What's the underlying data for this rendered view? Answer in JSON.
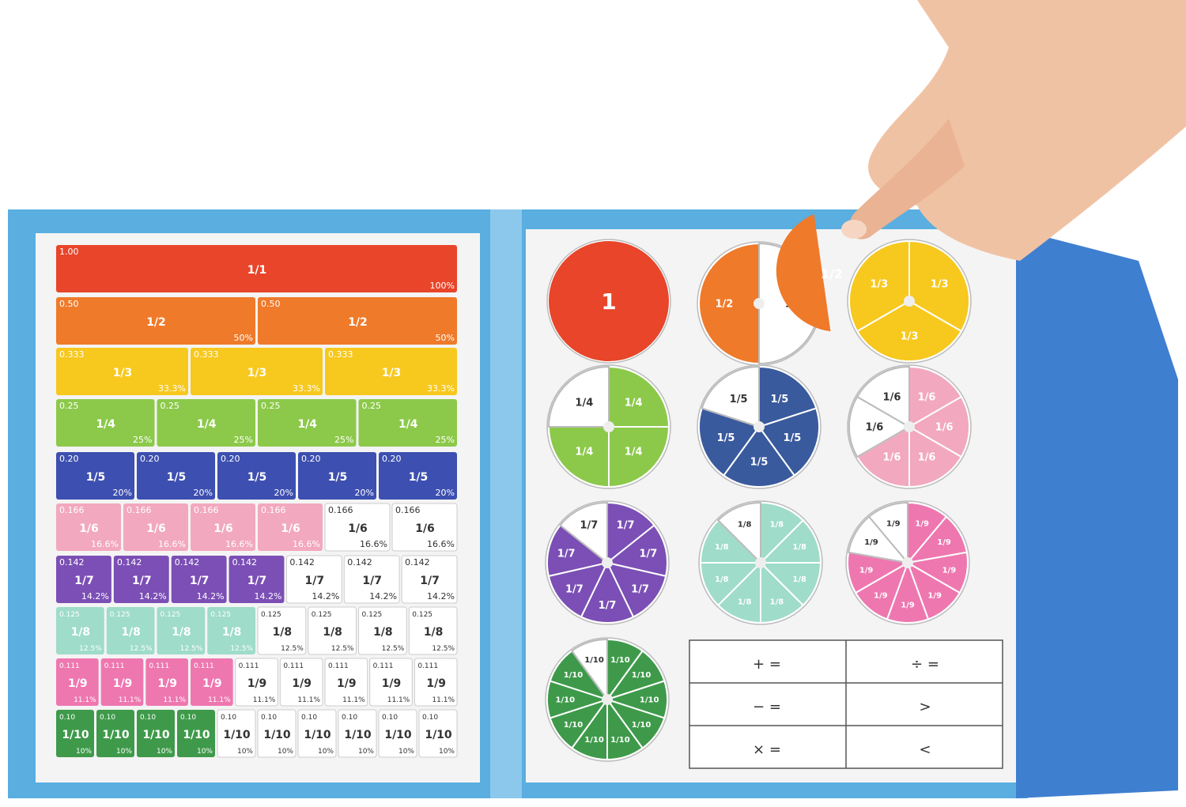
{
  "bars": [
    {
      "decimal": "1.00",
      "fraction": "1/1",
      "percent": "100%",
      "pieces": 1,
      "colored": 1,
      "color": "#e8452a"
    },
    {
      "decimal": "0.50",
      "fraction": "1/2",
      "percent": "50%",
      "pieces": 2,
      "colored": 2,
      "color": "#ef7a2a"
    },
    {
      "decimal": "0.333",
      "fraction": "1/3",
      "percent": "33.3%",
      "pieces": 3,
      "colored": 3,
      "color": "#f7c81e"
    },
    {
      "decimal": "0.25",
      "fraction": "1/4",
      "percent": "25%",
      "pieces": 4,
      "colored": 4,
      "color": "#8cc94a"
    },
    {
      "decimal": "0.20",
      "fraction": "1/5",
      "percent": "20%",
      "pieces": 5,
      "colored": 5,
      "color": "#3d4fb0"
    },
    {
      "decimal": "0.166",
      "fraction": "1/6",
      "percent": "16.6%",
      "pieces": 6,
      "colored": 4,
      "color": "#f2a8be"
    },
    {
      "decimal": "0.142",
      "fraction": "1/7",
      "percent": "14.2%",
      "pieces": 7,
      "colored": 4,
      "color": "#7b4fb5"
    },
    {
      "decimal": "0.125",
      "fraction": "1/8",
      "percent": "12.5%",
      "pieces": 8,
      "colored": 4,
      "color": "#9fdcca"
    },
    {
      "decimal": "0.111",
      "fraction": "1/9",
      "percent": "11.1%",
      "pieces": 9,
      "colored": 4,
      "color": "#ee77b0"
    },
    {
      "decimal": "0.10",
      "fraction": "1/10",
      "percent": "10%",
      "pieces": 10,
      "colored": 4,
      "color": "#3e9a4a"
    }
  ],
  "circles": [
    {
      "label": "1",
      "pieces": 1,
      "colored": 1,
      "color": "#e8452a"
    },
    {
      "label": "1/2",
      "pieces": 2,
      "colored": 1,
      "color": "#ef7a2a"
    },
    {
      "label": "1/3",
      "pieces": 3,
      "colored": 3,
      "color": "#f7c81e"
    },
    {
      "label": "1/4",
      "pieces": 4,
      "colored": 3,
      "color": "#8cc94a"
    },
    {
      "label": "1/5",
      "pieces": 5,
      "colored": 4,
      "color": "#3a5a9e"
    },
    {
      "label": "1/6",
      "pieces": 6,
      "colored": 4,
      "color": "#f2a8be"
    },
    {
      "label": "1/7",
      "pieces": 7,
      "colored": 6,
      "color": "#7b4fb5"
    },
    {
      "label": "1/8",
      "pieces": 8,
      "colored": 7,
      "color": "#9fdcca"
    },
    {
      "label": "1/9",
      "pieces": 9,
      "colored": 7,
      "color": "#ee77b0"
    },
    {
      "label": "1/10",
      "pieces": 10,
      "colored": 9,
      "color": "#3e9a4a"
    }
  ],
  "held_piece": {
    "label": "1/2",
    "color": "#ef7a2a"
  },
  "operations_table": [
    [
      "+   =",
      "÷   ="
    ],
    [
      "−   =",
      ">"
    ],
    [
      "×   =",
      "<"
    ]
  ],
  "colors": {
    "folder": "#5aaee0",
    "folder_dark": "#3f7fd0",
    "page": "#f4f4f4",
    "skin": "#f0c2a4"
  }
}
